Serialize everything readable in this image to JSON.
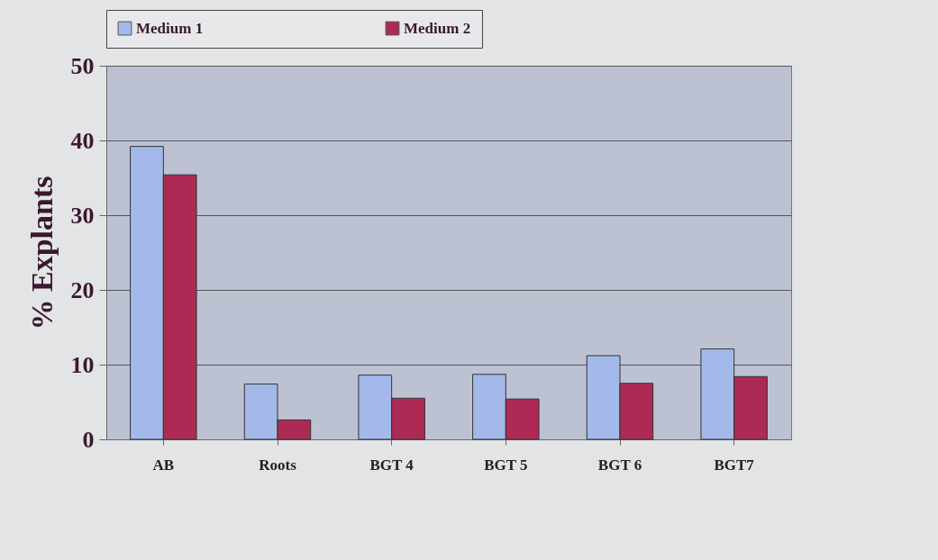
{
  "chart_data": {
    "type": "bar",
    "ylabel": "% Explants",
    "categories": [
      "AB",
      "Roots",
      "BGT 4",
      "BGT 5",
      "BGT 6",
      "BGT7"
    ],
    "series": [
      {
        "name": "Medium 1",
        "color": "#a3b9e9",
        "values": [
          39.2,
          7.4,
          8.6,
          8.7,
          11.2,
          12.1
        ]
      },
      {
        "name": "Medium 2",
        "color": "#ad2a55",
        "values": [
          35.4,
          2.6,
          5.5,
          5.4,
          7.5,
          8.4
        ]
      }
    ],
    "ylim": [
      0,
      50
    ],
    "yticks": [
      0,
      10,
      20,
      30,
      40,
      50
    ],
    "grid": "y",
    "legend": "top"
  }
}
